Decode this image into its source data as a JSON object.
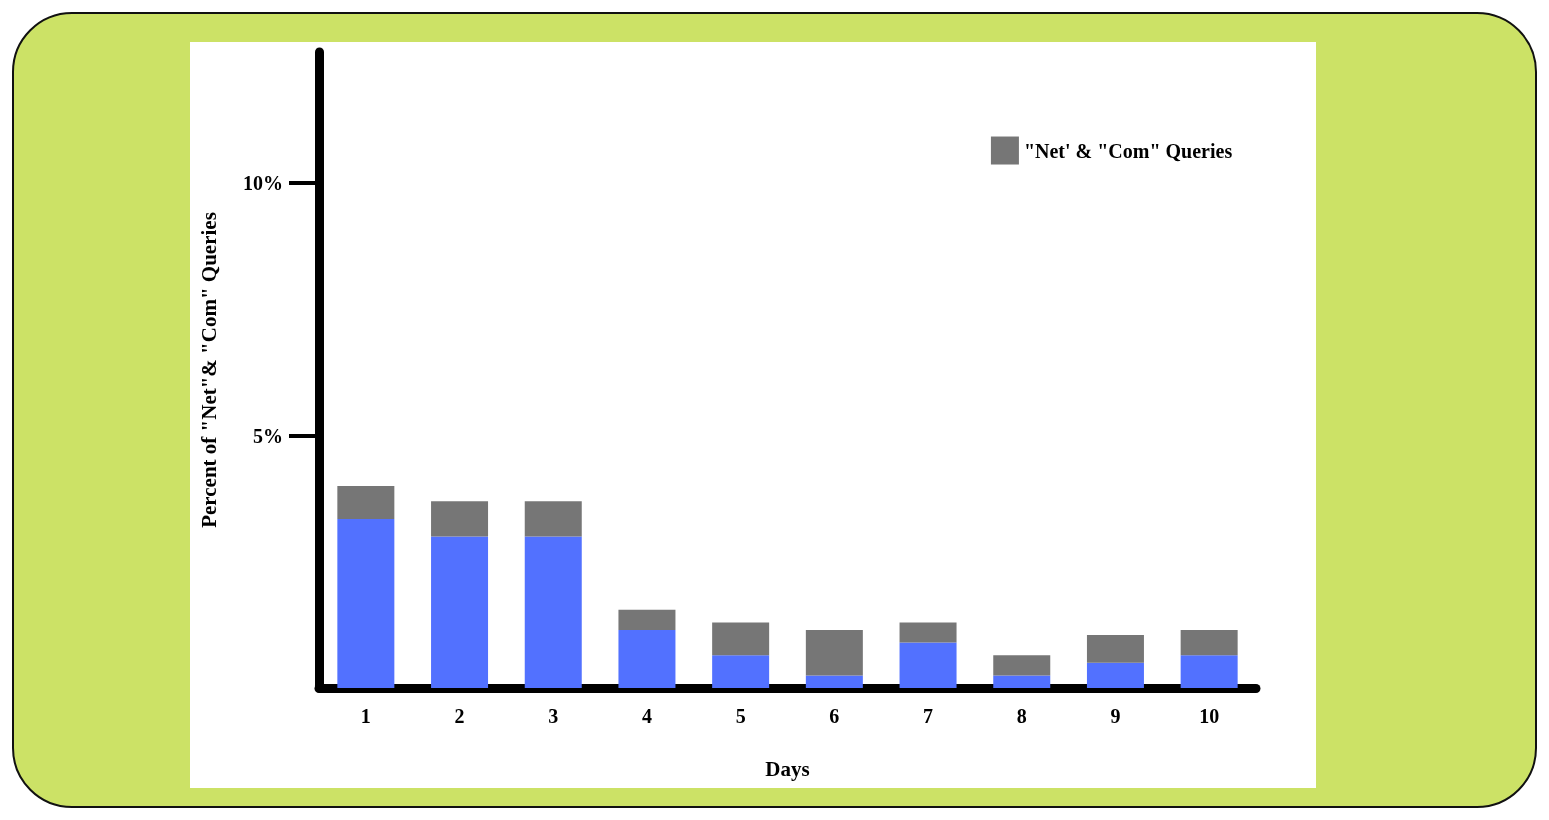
{
  "chart_data": {
    "type": "bar",
    "stacked": true,
    "xlabel": "Days",
    "ylabel": "Percent of \"Net\"& \"Com\" Queries",
    "categories": [
      "1",
      "2",
      "3",
      "4",
      "5",
      "6",
      "7",
      "8",
      "9",
      "10"
    ],
    "series": [
      {
        "color": "#5271ff",
        "values": [
          3.35,
          3.0,
          3.0,
          1.15,
          0.65,
          0.25,
          0.9,
          0.25,
          0.5,
          0.65
        ]
      },
      {
        "name": "\"Net' & \"Com\" Queries",
        "color": "#767676",
        "values": [
          0.65,
          0.7,
          0.7,
          0.4,
          0.65,
          0.9,
          0.4,
          0.4,
          0.55,
          0.5
        ]
      }
    ],
    "ylim": [
      0,
      12.6
    ],
    "yticks": [
      {
        "value": 5,
        "label": "5%"
      },
      {
        "value": 10,
        "label": "10%"
      }
    ],
    "grid": false,
    "legend": "top right"
  }
}
